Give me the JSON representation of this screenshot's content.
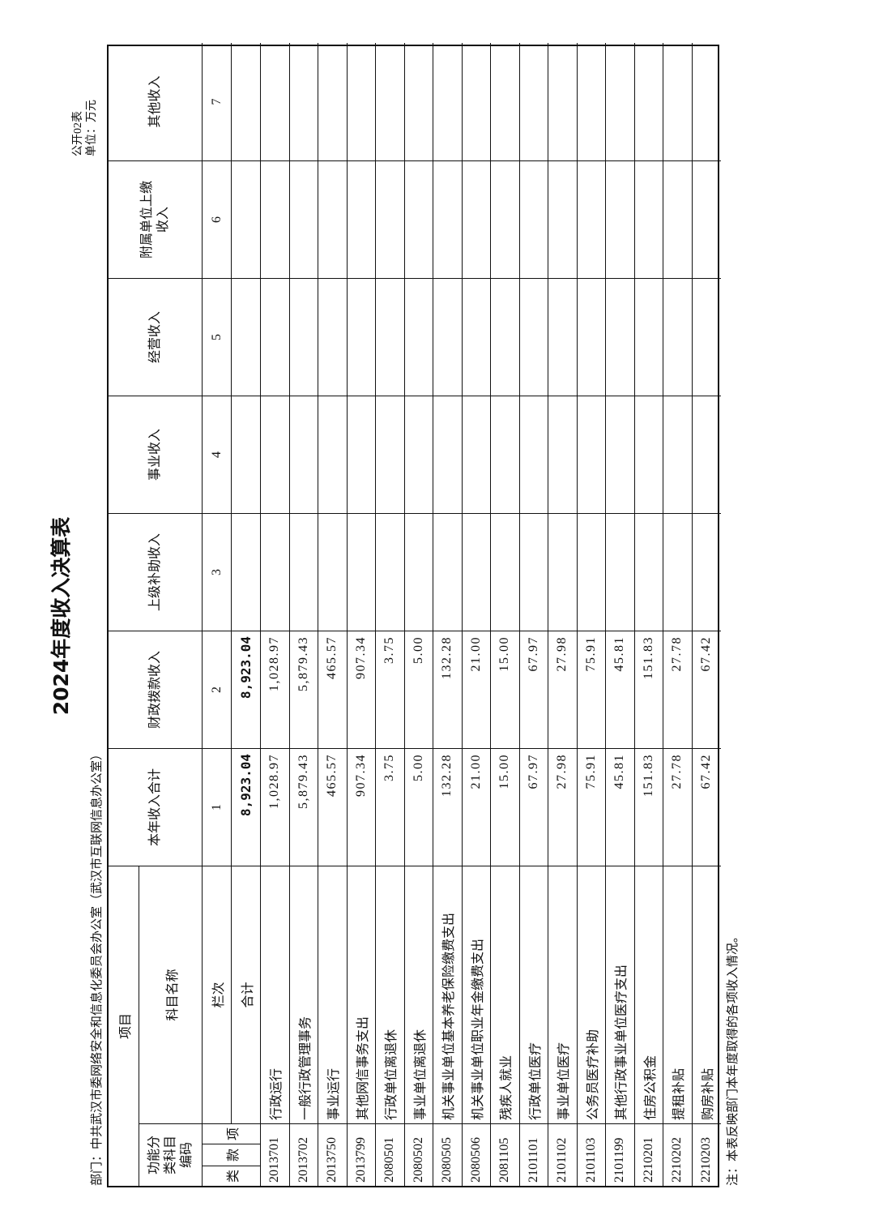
{
  "title": "2024年度收入决算表",
  "department": "部门：中共武汉市委网络安全和信息化委员会办公室（武汉市互联网信息办公室）",
  "form_no": "公开02表",
  "unit": "单位：万元",
  "note": "注：本表反映部门本年度取得的各项收入情况。",
  "header": {
    "project": "项目",
    "code_header": "功能分类科目编码",
    "name_header": "科目名称",
    "lei": "类",
    "kuan": "款",
    "xiang": "项",
    "column_index_label": "栏次",
    "total_label": "合计",
    "columns": [
      {
        "label": "本年收入合计",
        "index": "1"
      },
      {
        "label": "财政拨款收入",
        "index": "2"
      },
      {
        "label": "上级补助收入",
        "index": "3"
      },
      {
        "label": "事业收入",
        "index": "4"
      },
      {
        "label": "经营收入",
        "index": "5"
      },
      {
        "label": "附属单位上缴收入",
        "index": "6"
      },
      {
        "label": "其他收入",
        "index": "7"
      }
    ]
  },
  "totals": [
    "8,923.04",
    "8,923.04",
    "",
    "",
    "",
    "",
    ""
  ],
  "rows": [
    {
      "code": "2013701",
      "name": "行政运行",
      "values": [
        "1,028.97",
        "1,028.97",
        "",
        "",
        "",
        "",
        ""
      ]
    },
    {
      "code": "2013702",
      "name": "一般行政管理事务",
      "values": [
        "5,879.43",
        "5,879.43",
        "",
        "",
        "",
        "",
        ""
      ]
    },
    {
      "code": "2013750",
      "name": "事业运行",
      "values": [
        "465.57",
        "465.57",
        "",
        "",
        "",
        "",
        ""
      ]
    },
    {
      "code": "2013799",
      "name": "其他网信事务支出",
      "values": [
        "907.34",
        "907.34",
        "",
        "",
        "",
        "",
        ""
      ]
    },
    {
      "code": "2080501",
      "name": "行政单位离退休",
      "values": [
        "3.75",
        "3.75",
        "",
        "",
        "",
        "",
        ""
      ]
    },
    {
      "code": "2080502",
      "name": "事业单位离退休",
      "values": [
        "5.00",
        "5.00",
        "",
        "",
        "",
        "",
        ""
      ]
    },
    {
      "code": "2080505",
      "name": "机关事业单位基本养老保险缴费支出",
      "values": [
        "132.28",
        "132.28",
        "",
        "",
        "",
        "",
        ""
      ]
    },
    {
      "code": "2080506",
      "name": "机关事业单位职业年金缴费支出",
      "values": [
        "21.00",
        "21.00",
        "",
        "",
        "",
        "",
        ""
      ]
    },
    {
      "code": "2081105",
      "name": "残疾人就业",
      "values": [
        "15.00",
        "15.00",
        "",
        "",
        "",
        "",
        ""
      ]
    },
    {
      "code": "2101101",
      "name": "行政单位医疗",
      "values": [
        "67.97",
        "67.97",
        "",
        "",
        "",
        "",
        ""
      ]
    },
    {
      "code": "2101102",
      "name": "事业单位医疗",
      "values": [
        "27.98",
        "27.98",
        "",
        "",
        "",
        "",
        ""
      ]
    },
    {
      "code": "2101103",
      "name": "公务员医疗补助",
      "values": [
        "75.91",
        "75.91",
        "",
        "",
        "",
        "",
        ""
      ]
    },
    {
      "code": "2101199",
      "name": "其他行政事业单位医疗支出",
      "values": [
        "45.81",
        "45.81",
        "",
        "",
        "",
        "",
        ""
      ]
    },
    {
      "code": "2210201",
      "name": "住房公积金",
      "values": [
        "151.83",
        "151.83",
        "",
        "",
        "",
        "",
        ""
      ]
    },
    {
      "code": "2210202",
      "name": "提租补贴",
      "values": [
        "27.78",
        "27.78",
        "",
        "",
        "",
        "",
        ""
      ]
    },
    {
      "code": "2210203",
      "name": "购房补贴",
      "values": [
        "67.42",
        "67.42",
        "",
        "",
        "",
        "",
        ""
      ]
    }
  ]
}
